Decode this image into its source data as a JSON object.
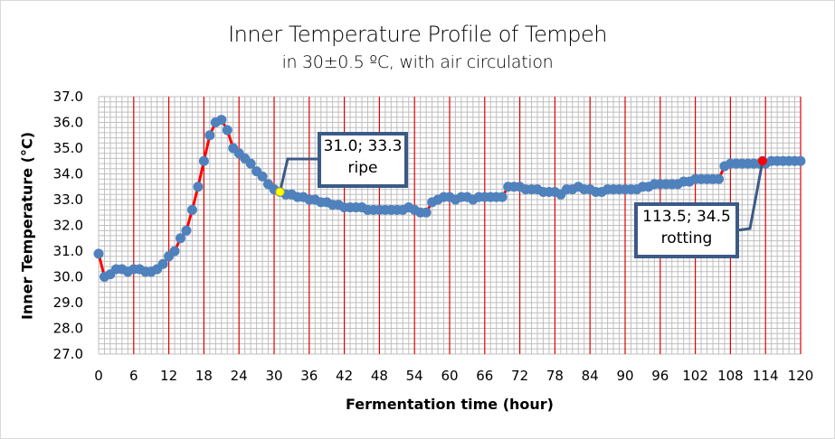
{
  "chart_data": {
    "type": "line",
    "title": "Inner Temperature  Profile of Tempeh",
    "subtitle": "in 30±0.5 ºC, with air circulation",
    "xlabel": "Fermentation time (hour)",
    "ylabel": "Inner Temperature (°C)",
    "xlim": [
      0,
      120
    ],
    "ylim": [
      27.0,
      37.0
    ],
    "x_ticks": [
      "0",
      "6",
      "12",
      "18",
      "24",
      "30",
      "36",
      "42",
      "48",
      "54",
      "60",
      "66",
      "72",
      "78",
      "84",
      "90",
      "96",
      "102",
      "108",
      "114",
      "120"
    ],
    "y_ticks": [
      "27.0",
      "28.0",
      "29.0",
      "30.0",
      "31.0",
      "32.0",
      "33.0",
      "34.0",
      "35.0",
      "36.0",
      "37.0"
    ],
    "grid": true,
    "colors": {
      "marker": "#4f81bd",
      "line": "#ff0000",
      "major_grid": "#e00000",
      "minor_grid": "#bfbfbf",
      "callout_border": "#3c5a86",
      "ripe_marker": "#ffff00",
      "rotting_marker": "#ff0000"
    },
    "series": [
      {
        "name": "Inner temperature",
        "x": [
          0,
          1,
          2,
          3,
          4,
          5,
          6,
          7,
          8,
          9,
          10,
          11,
          12,
          13,
          14,
          15,
          16,
          17,
          18,
          19,
          20,
          21,
          22,
          23,
          24,
          25,
          26,
          27,
          28,
          29,
          30,
          31,
          32,
          33,
          34,
          35,
          36,
          37,
          38,
          39,
          40,
          41,
          42,
          43,
          44,
          45,
          46,
          47,
          48,
          49,
          50,
          51,
          52,
          53,
          54,
          55,
          56,
          57,
          58,
          59,
          60,
          61,
          62,
          63,
          64,
          65,
          66,
          67,
          68,
          69,
          70,
          71,
          72,
          73,
          74,
          75,
          76,
          77,
          78,
          79,
          80,
          81,
          82,
          83,
          84,
          85,
          86,
          87,
          88,
          89,
          90,
          91,
          92,
          93,
          94,
          95,
          96,
          97,
          98,
          99,
          100,
          101,
          102,
          103,
          104,
          105,
          106,
          107,
          108,
          109,
          110,
          111,
          112,
          113,
          113.5,
          114,
          115,
          116,
          117,
          118,
          119,
          120
        ],
        "y": [
          30.9,
          30.0,
          30.1,
          30.3,
          30.3,
          30.2,
          30.3,
          30.3,
          30.2,
          30.2,
          30.3,
          30.5,
          30.8,
          31.0,
          31.5,
          31.8,
          32.6,
          33.5,
          34.5,
          35.5,
          36.0,
          36.1,
          35.7,
          35.0,
          34.8,
          34.6,
          34.4,
          34.1,
          33.9,
          33.6,
          33.4,
          33.3,
          33.2,
          33.2,
          33.1,
          33.1,
          33.0,
          33.0,
          32.9,
          32.9,
          32.8,
          32.8,
          32.7,
          32.7,
          32.7,
          32.7,
          32.6,
          32.6,
          32.6,
          32.6,
          32.6,
          32.6,
          32.6,
          32.7,
          32.6,
          32.5,
          32.5,
          32.9,
          33.0,
          33.1,
          33.1,
          33.0,
          33.1,
          33.1,
          33.0,
          33.1,
          33.1,
          33.1,
          33.1,
          33.1,
          33.5,
          33.5,
          33.5,
          33.4,
          33.4,
          33.4,
          33.3,
          33.3,
          33.3,
          33.2,
          33.4,
          33.4,
          33.5,
          33.4,
          33.4,
          33.3,
          33.3,
          33.4,
          33.4,
          33.4,
          33.4,
          33.4,
          33.4,
          33.5,
          33.5,
          33.6,
          33.6,
          33.6,
          33.6,
          33.6,
          33.7,
          33.7,
          33.8,
          33.8,
          33.8,
          33.8,
          33.8,
          34.3,
          34.4,
          34.4,
          34.4,
          34.4,
          34.4,
          34.4,
          34.5,
          34.4,
          34.5,
          34.5,
          34.5,
          34.5,
          34.5,
          34.5
        ]
      }
    ],
    "annotations": [
      {
        "x": 31.0,
        "y": 33.3,
        "line1": "31.0; 33.3",
        "line2": "ripe"
      },
      {
        "x": 113.5,
        "y": 34.5,
        "line1": "113.5; 34.5",
        "line2": "rotting"
      }
    ]
  }
}
